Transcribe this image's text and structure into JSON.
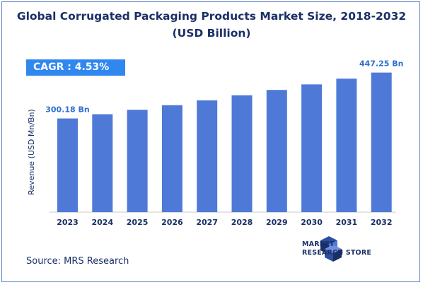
{
  "title_line1": "Global Corrugated Packaging Products Market Size, 2018-2032",
  "title_line2": "(USD Billion)",
  "cagr_label": "CAGR : 4.53%",
  "source": "Source: MRS Research",
  "logo": {
    "line1": "MARKET",
    "line2": "RESEARCH STORE"
  },
  "colors": {
    "bar": "#4e79d6",
    "accent": "#2f87ef",
    "text": "#1a2f66",
    "border": "#5b7fc7"
  },
  "chart_data": {
    "type": "bar",
    "categories": [
      "2023",
      "2024",
      "2025",
      "2026",
      "2027",
      "2028",
      "2029",
      "2030",
      "2031",
      "2032"
    ],
    "values": [
      300.18,
      313.8,
      328.0,
      342.8,
      358.3,
      374.6,
      391.6,
      409.3,
      427.8,
      447.25
    ],
    "data_labels": {
      "2023": "300.18 Bn",
      "2032": "447.25 Bn"
    },
    "title": "Global Corrugated Packaging Products Market Size, 2018-2032 (USD Billion)",
    "xlabel": "",
    "ylabel": "Revenue (USD Mn/Bn)",
    "ylim": [
      0,
      460
    ],
    "grid": false,
    "legend": "none"
  }
}
